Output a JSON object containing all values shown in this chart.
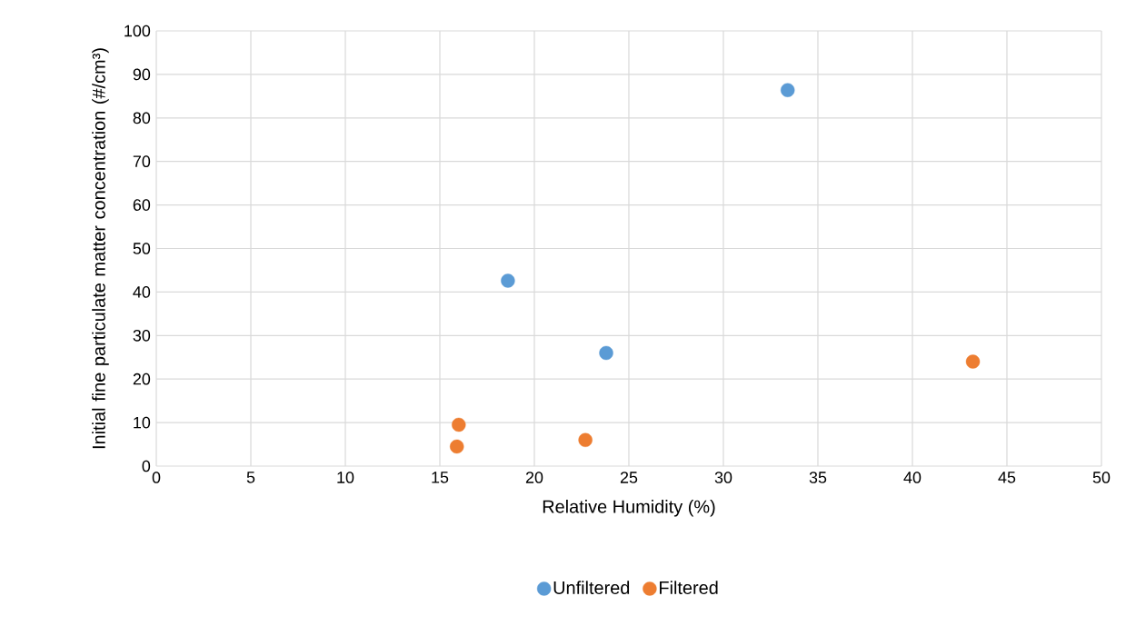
{
  "chart_data": {
    "type": "scatter",
    "xlabel": "Relative Humidity (%)",
    "ylabel": "Initial fine particulate matter concentration (#/cm³)",
    "xlim": [
      0,
      50
    ],
    "xticks": [
      0,
      5,
      10,
      15,
      20,
      25,
      30,
      35,
      40,
      45,
      50
    ],
    "ylim": [
      0,
      100
    ],
    "yticks": [
      0,
      10,
      20,
      30,
      40,
      50,
      60,
      70,
      80,
      90,
      100
    ],
    "grid": true,
    "legend": "bottom",
    "marker": "circle",
    "series": [
      {
        "name": "Unfiltered",
        "color": "#5b9bd5",
        "x": [
          18.6,
          23.8,
          33.4
        ],
        "values": [
          42.6,
          26.0,
          86.4
        ]
      },
      {
        "name": "Filtered",
        "color": "#ed7d31",
        "x": [
          16.0,
          15.9,
          22.7,
          43.2
        ],
        "values": [
          9.5,
          4.5,
          6.0,
          24.0
        ]
      }
    ]
  }
}
